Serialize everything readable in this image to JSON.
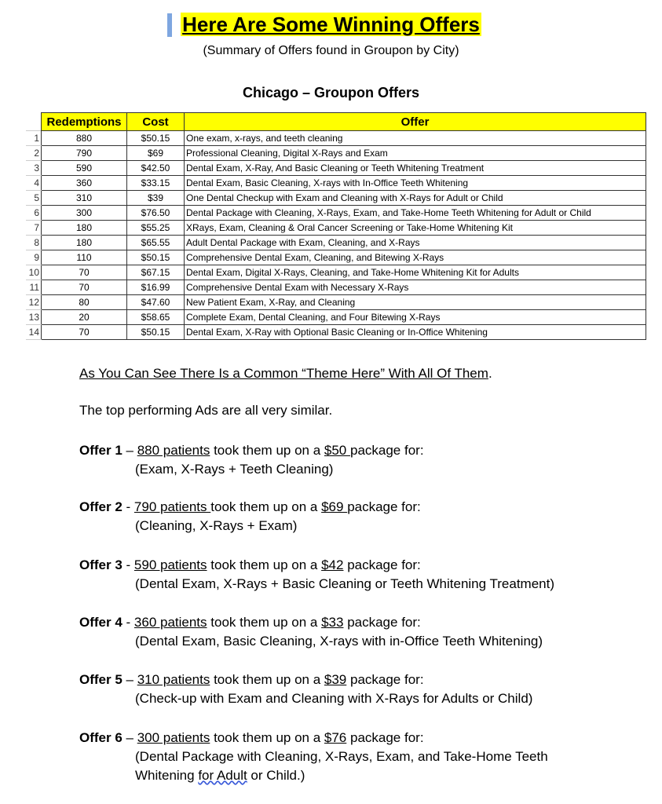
{
  "title": "Here Are Some Winning Offers",
  "subtitle": "(Summary of Offers found in Groupon by City)",
  "city_heading": "Chicago – Groupon Offers",
  "table": {
    "headers": [
      "Redemptions",
      "Cost",
      "Offer"
    ],
    "rows": [
      [
        "1",
        "880",
        "$50.15",
        "One exam, x-rays, and teeth cleaning"
      ],
      [
        "2",
        "790",
        "$69",
        "Professional Cleaning, Digital X-Rays and Exam"
      ],
      [
        "3",
        "590",
        "$42.50",
        "Dental Exam, X-Ray, And Basic Cleaning or Teeth Whitening Treatment"
      ],
      [
        "4",
        "360",
        "$33.15",
        "Dental Exam, Basic Cleaning, X-rays with In-Office Teeth Whitening"
      ],
      [
        "5",
        "310",
        "$39",
        "One Dental Checkup with Exam and Cleaning with X-Rays for Adult or Child"
      ],
      [
        "6",
        "300",
        "$76.50",
        "Dental Package with Cleaning, X-Rays, Exam, and Take-Home Teeth Whitening for Adult or Child"
      ],
      [
        "7",
        "180",
        "$55.25",
        "XRays, Exam, Cleaning & Oral Cancer Screening or Take-Home Whitening Kit"
      ],
      [
        "8",
        "180",
        "$65.55",
        "Adult Dental Package with Exam, Cleaning, and X-Rays"
      ],
      [
        "9",
        "110",
        "$50.15",
        "Comprehensive Dental Exam, Cleaning, and Bitewing X-Rays"
      ],
      [
        "10",
        "70",
        "$67.15",
        "Dental Exam, Digital X-Rays, Cleaning, and Take-Home Whitening Kit for Adults"
      ],
      [
        "11",
        "70",
        "$16.99",
        "Comprehensive Dental Exam with Necessary X-Rays"
      ],
      [
        "12",
        "80",
        "$47.60",
        "New Patient Exam, X-Ray, and Cleaning"
      ],
      [
        "13",
        "20",
        "$58.65",
        "Complete Exam, Dental Cleaning, and Four Bitewing X-Rays"
      ],
      [
        "14",
        "70",
        "$50.15",
        "Dental Exam, X-Ray with Optional Basic Cleaning or In-Office Whitening"
      ]
    ]
  },
  "theme_line": "As You Can See There Is a Common “Theme Here” With All Of Them",
  "theme_period": ".",
  "similar_line": "The top performing Ads are all very similar.",
  "offers": [
    {
      "label": "Offer 1",
      "sep": " – ",
      "patients": "880 patients",
      "mid": " took them up on a ",
      "price": "$50 ",
      "tail": "package for:",
      "details": [
        "(Exam, X-Rays + Teeth Cleaning)"
      ]
    },
    {
      "label": "Offer 2",
      "sep": " - ",
      "patients": "790 patients ",
      "mid": "took them up on a ",
      "price": "$69 ",
      "tail": "package for:",
      "details": [
        "(Cleaning, X-Rays + Exam)"
      ]
    },
    {
      "label": "Offer 3",
      "sep": " - ",
      "patients": "590 patients",
      "mid": " took them up on a ",
      "price": "$42",
      "tail": " package for:",
      "details": [
        "(Dental Exam, X-Rays + Basic Cleaning or Teeth Whitening Treatment)"
      ]
    },
    {
      "label": "Offer 4",
      "sep": " - ",
      "patients": "360 patients",
      "mid": " took them up on a ",
      "price": "$33",
      "tail": " package for:",
      "details": [
        "(Dental Exam, Basic Cleaning, X-rays with in-Office Teeth Whitening)"
      ]
    },
    {
      "label": "Offer 5",
      "sep": " – ",
      "patients": "310 patients",
      "mid": " took them up on a ",
      "price": "$39",
      "tail": " package for:",
      "details": [
        "(Check-up with Exam and Cleaning with X-Rays for Adults or Child)"
      ]
    },
    {
      "label": "Offer 6",
      "sep": " – ",
      "patients": "300 patients",
      "mid": " took them up on a ",
      "price": "$76",
      "tail": " package for:",
      "details": [
        "(Dental Package with Cleaning, X-Rays, Exam, and Take-Home Teeth"
      ]
    }
  ],
  "last_line": {
    "pre": " Whitening ",
    "wavy": "for Adult",
    "post": " or Child.)"
  }
}
